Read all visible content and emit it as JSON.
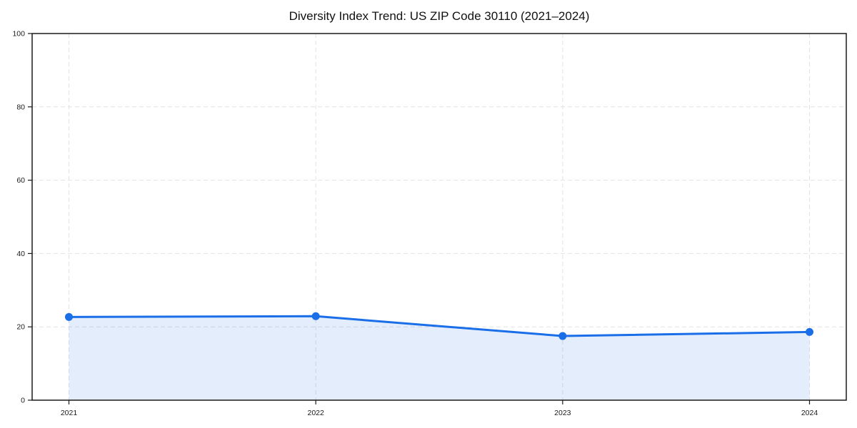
{
  "chart_data": {
    "type": "area",
    "title": "Diversity Index Trend: US ZIP Code 30110 (2021–2024)",
    "categories": [
      "2021",
      "2022",
      "2023",
      "2024"
    ],
    "series": [
      {
        "name": "Diversity Index",
        "values": [
          22.7,
          22.9,
          17.5,
          18.6
        ]
      }
    ],
    "xlabel": "",
    "ylabel": "",
    "ylim": [
      0,
      100
    ],
    "yticks": [
      0,
      20,
      40,
      60,
      80,
      100
    ],
    "grid": true,
    "grid_style": "dashed",
    "legend": false,
    "colors": {
      "line": "#1a6ee8",
      "marker": "#1a6ee8",
      "fill": "#1a6ee8",
      "fill_opacity": 0.12,
      "grid": "#e2e2e2",
      "spine": "#1a1a1a",
      "text": "#1a1a1a",
      "background": "#ffffff"
    }
  }
}
